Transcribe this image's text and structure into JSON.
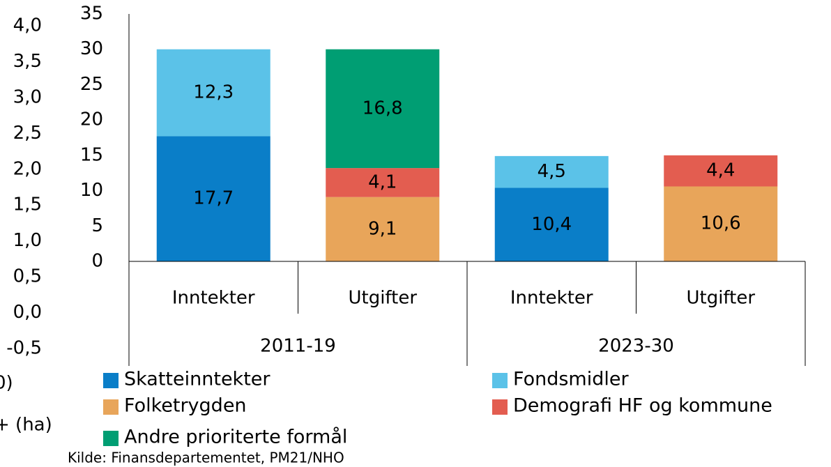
{
  "chart_data": [
    {
      "type": "bar",
      "ylim": [
        -0.5,
        4.0
      ],
      "yticks": [
        {
          "value": -0.5,
          "label": "-0,5"
        },
        {
          "value": 0,
          "label": "0,0"
        },
        {
          "value": 0.5,
          "label": "0,5"
        },
        {
          "value": 1,
          "label": "1,0"
        },
        {
          "value": 1.5,
          "label": "1,5"
        },
        {
          "value": 2,
          "label": "2,0"
        },
        {
          "value": 2.5,
          "label": "2,5"
        },
        {
          "value": 3,
          "label": "3,0"
        },
        {
          "value": 3.5,
          "label": "3,5"
        },
        {
          "value": 4,
          "label": "4,0"
        }
      ],
      "annotations": [
        "0)",
        "+ (ha)"
      ]
    },
    {
      "type": "bar",
      "categories": [
        "Inntekter",
        "Utgifter",
        "Inntekter",
        "Utgifter"
      ],
      "groups": [
        "2011-19",
        "2023-30"
      ],
      "ylim": [
        0,
        35
      ],
      "yticks": [
        0,
        5,
        10,
        15,
        20,
        25,
        30,
        35
      ],
      "series": [
        {
          "name": "Skatteinntekter",
          "color": "#0a7ec8",
          "values": [
            17.7,
            null,
            10.4,
            null
          ],
          "value_labels": [
            "17,7",
            null,
            "10,4",
            null
          ]
        },
        {
          "name": "Fondsmidler",
          "color": "#5bc2e8",
          "values": [
            12.3,
            null,
            4.5,
            null
          ],
          "value_labels": [
            "12,3",
            null,
            "4,5",
            null
          ]
        },
        {
          "name": "Folketrygden",
          "color": "#e8a55a",
          "values": [
            null,
            9.1,
            null,
            10.6
          ],
          "value_labels": [
            null,
            "9,1",
            null,
            "10,6"
          ]
        },
        {
          "name": "Demografi HF og kommune",
          "color": "#e35d50",
          "values": [
            null,
            4.1,
            null,
            4.4
          ],
          "value_labels": [
            null,
            "4,1",
            null,
            "4,4"
          ]
        },
        {
          "name": "Andre prioriterte formål",
          "color": "#009e73",
          "values": [
            null,
            16.8,
            null,
            null
          ],
          "value_labels": [
            null,
            "16,8",
            null,
            null
          ]
        }
      ],
      "source": "Kilde: Finansdepartementet, PM21/NHO"
    }
  ]
}
